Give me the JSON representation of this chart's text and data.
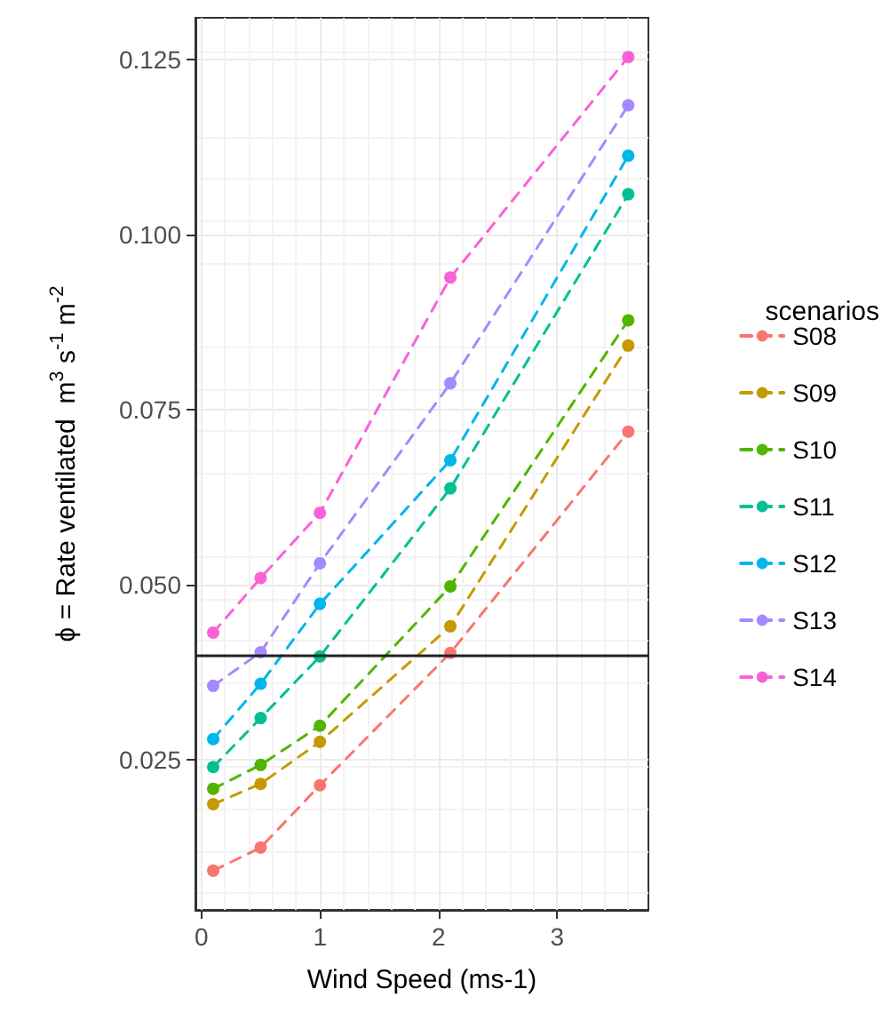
{
  "chart_data": {
    "type": "line",
    "xlabel": "Wind Speed (ms-1)",
    "ylabel": "ϕ = Rate ventilated  m$^{3}$ s$^{-1}$ m$^{-2}$",
    "legend_title": "scenarios",
    "legend": "right",
    "grid": true,
    "marker": "circle",
    "line_style": "dashed",
    "x": [
      0.1,
      0.5,
      1,
      2.1,
      3.6
    ],
    "xlim": [
      -0.05,
      3.77
    ],
    "xticks": [
      0,
      1,
      2,
      3
    ],
    "ylim": [
      0.0036,
      0.131
    ],
    "yticks": [
      {
        "value": 0.025,
        "label": "0.025"
      },
      {
        "value": 0.05,
        "label": "0.050"
      },
      {
        "value": 0.075,
        "label": "0.075"
      },
      {
        "value": 0.1,
        "label": "0.100"
      },
      {
        "value": 0.125,
        "label": "0.125"
      }
    ],
    "series": [
      {
        "name": "S08",
        "color": "#f8766d",
        "values": [
          0.0092,
          0.0125,
          0.0214,
          0.0403,
          0.0719
        ]
      },
      {
        "name": "S09",
        "color": "#c49a00",
        "values": [
          0.0187,
          0.0216,
          0.0276,
          0.0441,
          0.0842
        ]
      },
      {
        "name": "S10",
        "color": "#53b400",
        "values": [
          0.0209,
          0.0243,
          0.0299,
          0.0498,
          0.0878
        ]
      },
      {
        "name": "S11",
        "color": "#00c094",
        "values": [
          0.024,
          0.031,
          0.0398,
          0.0638,
          0.1058
        ]
      },
      {
        "name": "S12",
        "color": "#00b6eb",
        "values": [
          0.028,
          0.0359,
          0.0473,
          0.0678,
          0.1113
        ]
      },
      {
        "name": "S13",
        "color": "#a58aff",
        "values": [
          0.0356,
          0.0404,
          0.0531,
          0.0788,
          0.1185
        ]
      },
      {
        "name": "S14",
        "color": "#fb61d7",
        "values": [
          0.0432,
          0.051,
          0.0603,
          0.0939,
          0.1254
        ]
      }
    ],
    "ref_lines": [
      {
        "axis": "y",
        "value": 0.04,
        "label": null,
        "color": "#222222",
        "line_style": "solid"
      }
    ]
  }
}
